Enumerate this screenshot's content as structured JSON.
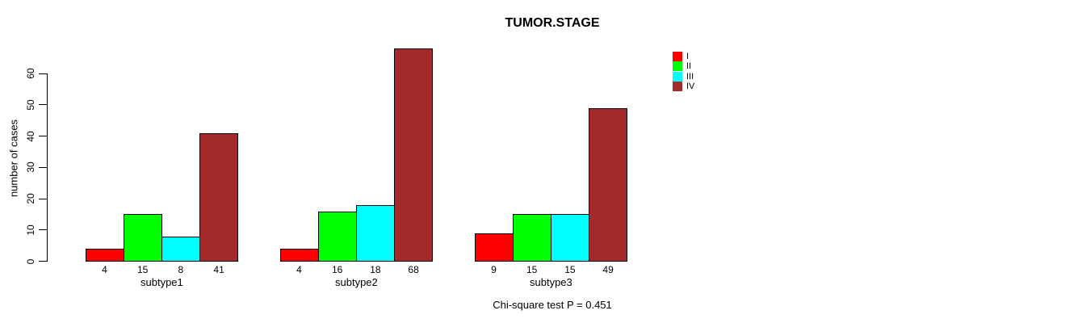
{
  "chart_data": {
    "type": "bar",
    "title": "TUMOR.STAGE",
    "ylabel": "number of cases",
    "xlabel": "",
    "ylim": [
      0,
      68
    ],
    "yticks": [
      0,
      10,
      20,
      30,
      40,
      50,
      60
    ],
    "grid": false,
    "categories": [
      "subtype1",
      "subtype2",
      "subtype3"
    ],
    "series": [
      {
        "name": "I",
        "color": "#FF0000",
        "values": [
          4,
          4,
          9
        ]
      },
      {
        "name": "II",
        "color": "#00FF00",
        "values": [
          15,
          16,
          15
        ]
      },
      {
        "name": "III",
        "color": "#00FFFF",
        "values": [
          8,
          18,
          15
        ]
      },
      {
        "name": "IV",
        "color": "#A52A2A",
        "values": [
          41,
          68,
          49
        ]
      }
    ],
    "legend_position": "top-right",
    "annotation": "Chi-square test P = 0.451"
  }
}
